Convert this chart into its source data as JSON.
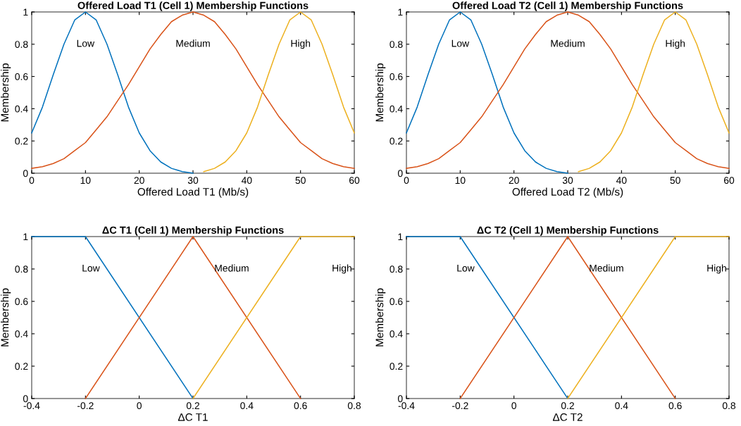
{
  "chart_data": [
    {
      "type": "line",
      "title": "Offered Load T1 (Cell 1) Membership Functions",
      "xlabel": "Offered Load T1 (Mb/s)",
      "ylabel": "Membership",
      "x": [
        0,
        2,
        4,
        6,
        8,
        10,
        12,
        14,
        16,
        18,
        20,
        22,
        24,
        26,
        28,
        30,
        32,
        34,
        36,
        38,
        40,
        42,
        44,
        46,
        48,
        50,
        52,
        54,
        56,
        58,
        60
      ],
      "series": [
        {
          "name": "Low",
          "color": "#0072bd",
          "values": [
            0.25,
            0.41,
            0.61,
            0.8,
            0.95,
            1,
            0.95,
            0.8,
            0.61,
            0.41,
            0.25,
            0.14,
            0.07,
            0.03,
            0.01,
            0,
            null,
            null,
            null,
            null,
            null,
            null,
            null,
            null,
            null,
            null,
            null,
            null,
            null,
            null,
            null
          ]
        },
        {
          "name": "Medium",
          "color": "#d95319",
          "values": [
            0.03,
            0.04,
            0.06,
            0.09,
            0.14,
            0.19,
            0.27,
            0.35,
            0.45,
            0.55,
            0.66,
            0.77,
            0.86,
            0.94,
            0.98,
            1,
            0.98,
            0.94,
            0.86,
            0.77,
            0.66,
            0.55,
            0.45,
            0.35,
            0.27,
            0.19,
            0.14,
            0.09,
            0.06,
            0.04,
            0.03
          ]
        },
        {
          "name": "High",
          "color": "#edb120",
          "values": [
            null,
            null,
            null,
            null,
            null,
            null,
            null,
            null,
            null,
            null,
            null,
            null,
            null,
            null,
            null,
            null,
            0.01,
            0.03,
            0.07,
            0.14,
            0.25,
            0.41,
            0.61,
            0.8,
            0.95,
            1,
            0.95,
            0.8,
            0.61,
            0.41,
            0.25
          ]
        }
      ],
      "xlim": [
        0,
        60
      ],
      "xticks": [
        0,
        10,
        20,
        30,
        40,
        50,
        60
      ],
      "ylim": [
        0,
        1
      ],
      "yticks": [
        0,
        0.2,
        0.4,
        0.6,
        0.8,
        1
      ],
      "grid": false,
      "legend": false
    },
    {
      "type": "line",
      "title": "Offered Load T2 (Cell 1) Membership Functions",
      "xlabel": "Offered Load T2 (Mb/s)",
      "ylabel": "Membership",
      "x": [
        0,
        2,
        4,
        6,
        8,
        10,
        12,
        14,
        16,
        18,
        20,
        22,
        24,
        26,
        28,
        30,
        32,
        34,
        36,
        38,
        40,
        42,
        44,
        46,
        48,
        50,
        52,
        54,
        56,
        58,
        60
      ],
      "series": [
        {
          "name": "Low",
          "color": "#0072bd",
          "values": [
            0.25,
            0.41,
            0.61,
            0.8,
            0.95,
            1,
            0.95,
            0.8,
            0.61,
            0.41,
            0.25,
            0.14,
            0.07,
            0.03,
            0.01,
            0,
            null,
            null,
            null,
            null,
            null,
            null,
            null,
            null,
            null,
            null,
            null,
            null,
            null,
            null,
            null
          ]
        },
        {
          "name": "Medium",
          "color": "#d95319",
          "values": [
            0.03,
            0.04,
            0.06,
            0.09,
            0.14,
            0.19,
            0.27,
            0.35,
            0.45,
            0.55,
            0.66,
            0.77,
            0.86,
            0.94,
            0.98,
            1,
            0.98,
            0.94,
            0.86,
            0.77,
            0.66,
            0.55,
            0.45,
            0.35,
            0.27,
            0.19,
            0.14,
            0.09,
            0.06,
            0.04,
            0.03
          ]
        },
        {
          "name": "High",
          "color": "#edb120",
          "values": [
            null,
            null,
            null,
            null,
            null,
            null,
            null,
            null,
            null,
            null,
            null,
            null,
            null,
            null,
            null,
            null,
            0.01,
            0.03,
            0.07,
            0.14,
            0.25,
            0.41,
            0.61,
            0.8,
            0.95,
            1,
            0.95,
            0.8,
            0.61,
            0.41,
            0.25
          ]
        }
      ],
      "xlim": [
        0,
        60
      ],
      "xticks": [
        0,
        10,
        20,
        30,
        40,
        50,
        60
      ],
      "ylim": [
        0,
        1
      ],
      "yticks": [
        0,
        0.2,
        0.4,
        0.6,
        0.8,
        1
      ],
      "grid": false,
      "legend": false
    },
    {
      "type": "line",
      "title": "ΔC T1 (Cell 1) Membership Functions",
      "xlabel": "ΔC T1",
      "ylabel": "Membership",
      "series": [
        {
          "name": "Low",
          "color": "#0072bd",
          "x": [
            -0.4,
            -0.2,
            0.2
          ],
          "values": [
            1,
            1,
            0
          ]
        },
        {
          "name": "Medium",
          "color": "#d95319",
          "x": [
            -0.2,
            0.2,
            0.6
          ],
          "values": [
            0,
            1,
            0
          ]
        },
        {
          "name": "High",
          "color": "#edb120",
          "x": [
            0.2,
            0.6,
            0.8
          ],
          "values": [
            0,
            1,
            1
          ]
        }
      ],
      "xlim": [
        -0.4,
        0.8
      ],
      "xticks": [
        -0.4,
        -0.2,
        0,
        0.2,
        0.4,
        0.6,
        0.8
      ],
      "ylim": [
        0,
        1
      ],
      "yticks": [
        0,
        0.2,
        0.4,
        0.6,
        0.8,
        1
      ],
      "grid": false,
      "legend": false
    },
    {
      "type": "line",
      "title": "ΔC T2 (Cell 1) Membership Functions",
      "xlabel": "ΔC T2",
      "ylabel": "Membership",
      "series": [
        {
          "name": "Low",
          "color": "#0072bd",
          "x": [
            -0.4,
            -0.2,
            0.2
          ],
          "values": [
            1,
            1,
            0
          ]
        },
        {
          "name": "Medium",
          "color": "#d95319",
          "x": [
            -0.2,
            0.2,
            0.6
          ],
          "values": [
            0,
            1,
            0
          ]
        },
        {
          "name": "High",
          "color": "#edb120",
          "x": [
            0.2,
            0.6,
            0.8
          ],
          "values": [
            0,
            1,
            1
          ]
        }
      ],
      "xlim": [
        -0.4,
        0.8
      ],
      "xticks": [
        -0.4,
        -0.2,
        0,
        0.2,
        0.4,
        0.6,
        0.8
      ],
      "ylim": [
        0,
        1
      ],
      "yticks": [
        0,
        0.2,
        0.4,
        0.6,
        0.8,
        1
      ],
      "grid": false,
      "legend": false
    }
  ]
}
